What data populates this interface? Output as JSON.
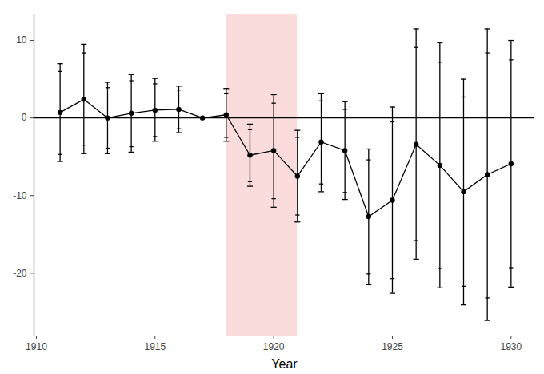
{
  "chart_data": {
    "type": "line",
    "x_label": "Year",
    "x": [
      1911,
      1912,
      1913,
      1914,
      1915,
      1916,
      1917,
      1918,
      1919,
      1920,
      1921,
      1922,
      1923,
      1924,
      1925,
      1926,
      1927,
      1928,
      1929,
      1930
    ],
    "values": [
      0.7,
      2.4,
      0,
      0.6,
      1.0,
      1.1,
      0,
      0.4,
      -4.8,
      -4.2,
      -7.5,
      -3.1,
      -4.2,
      -12.7,
      -10.6,
      -3.4,
      -6.1,
      -9.5,
      -7.3,
      -5.9
    ],
    "error_outer_low": [
      -5.6,
      -4.6,
      -4.6,
      -4.4,
      -3.0,
      -1.9,
      null,
      -3.0,
      -8.8,
      -11.5,
      -13.4,
      -9.5,
      -10.5,
      -21.5,
      -22.6,
      -18.2,
      -21.9,
      -24.1,
      -26.1,
      -21.8
    ],
    "error_outer_high": [
      7.0,
      9.5,
      4.6,
      5.6,
      5.1,
      4.1,
      null,
      3.8,
      -0.8,
      3.0,
      -1.6,
      3.2,
      2.1,
      -4.0,
      1.4,
      11.5,
      9.7,
      5.0,
      11.5,
      10.0
    ],
    "error_inner_low": [
      -4.7,
      -3.5,
      -3.9,
      -3.7,
      -2.4,
      -1.4,
      null,
      -2.5,
      -8.2,
      -10.4,
      -12.5,
      -8.5,
      -9.6,
      -20.1,
      -20.7,
      -15.8,
      -19.4,
      -21.7,
      -23.2,
      -19.3
    ],
    "error_inner_high": [
      6.0,
      8.4,
      3.9,
      4.8,
      4.4,
      3.6,
      null,
      3.2,
      -1.5,
      1.9,
      -2.5,
      2.2,
      1.1,
      -5.4,
      -0.5,
      9.1,
      7.2,
      2.7,
      8.4,
      7.5
    ],
    "color": "#000000",
    "marker": "circle",
    "reference_line": 0,
    "highlight": {
      "start": 1918,
      "end": 1921,
      "color": "#fbdcdc"
    },
    "xlim": [
      1909.9,
      1931
    ],
    "xticks": [
      1910,
      1915,
      1920,
      1925,
      1930
    ],
    "ylim": [
      -28.1,
      13.3
    ],
    "yticks": [
      -20,
      -10,
      0,
      10
    ],
    "grid": false
  }
}
